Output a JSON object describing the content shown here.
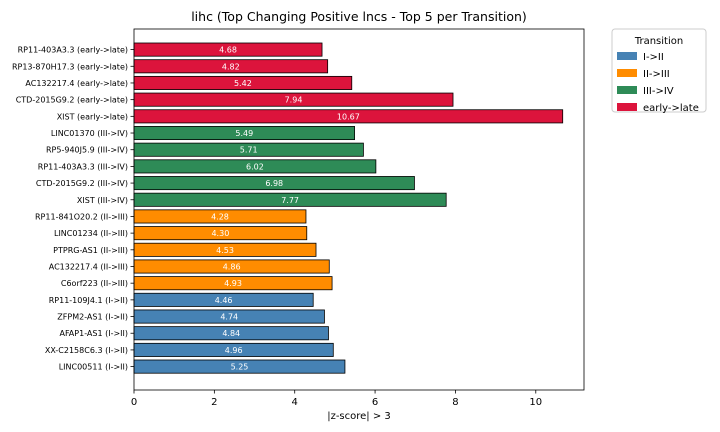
{
  "chart_data": {
    "type": "bar",
    "orientation": "horizontal",
    "title": "lihc (Top Changing Positive lncs - Top 5 per Transition)",
    "xlabel": "|z-score| > 3",
    "ylabel": "",
    "xlim": [
      0,
      11.2
    ],
    "xticks": [
      0,
      2,
      4,
      6,
      8,
      10
    ],
    "grid": false,
    "legend": {
      "title": "Transition",
      "placement": "outside-top-right",
      "entries": [
        {
          "label": "I->II",
          "color": "#4682b4"
        },
        {
          "label": "II->III",
          "color": "#ff8c00"
        },
        {
          "label": "III->IV",
          "color": "#2e8b57"
        },
        {
          "label": "early->late",
          "color": "#dc143c"
        }
      ]
    },
    "bars": [
      {
        "label": "RP11-403A3.3 (early->late)",
        "value": 4.68,
        "value_label": "4.68",
        "series": "early->late"
      },
      {
        "label": "RP13-870H17.3 (early->late)",
        "value": 4.82,
        "value_label": "4.82",
        "series": "early->late"
      },
      {
        "label": "AC132217.4 (early->late)",
        "value": 5.42,
        "value_label": "5.42",
        "series": "early->late"
      },
      {
        "label": "CTD-2015G9.2 (early->late)",
        "value": 7.94,
        "value_label": "7.94",
        "series": "early->late"
      },
      {
        "label": "XIST (early->late)",
        "value": 10.67,
        "value_label": "10.67",
        "series": "early->late"
      },
      {
        "label": "LINC01370 (III->IV)",
        "value": 5.49,
        "value_label": "5.49",
        "series": "III->IV"
      },
      {
        "label": "RP5-940J5.9 (III->IV)",
        "value": 5.71,
        "value_label": "5.71",
        "series": "III->IV"
      },
      {
        "label": "RP11-403A3.3 (III->IV)",
        "value": 6.02,
        "value_label": "6.02",
        "series": "III->IV"
      },
      {
        "label": "CTD-2015G9.2 (III->IV)",
        "value": 6.98,
        "value_label": "6.98",
        "series": "III->IV"
      },
      {
        "label": "XIST (III->IV)",
        "value": 7.77,
        "value_label": "7.77",
        "series": "III->IV"
      },
      {
        "label": "RP11-841O20.2 (II->III)",
        "value": 4.28,
        "value_label": "4.28",
        "series": "II->III"
      },
      {
        "label": "LINC01234 (II->III)",
        "value": 4.3,
        "value_label": "4.30",
        "series": "II->III"
      },
      {
        "label": "PTPRG-AS1 (II->III)",
        "value": 4.53,
        "value_label": "4.53",
        "series": "II->III"
      },
      {
        "label": "AC132217.4 (II->III)",
        "value": 4.86,
        "value_label": "4.86",
        "series": "II->III"
      },
      {
        "label": "C6orf223 (II->III)",
        "value": 4.93,
        "value_label": "4.93",
        "series": "II->III"
      },
      {
        "label": "RP11-109J4.1 (I->II)",
        "value": 4.46,
        "value_label": "4.46",
        "series": "I->II"
      },
      {
        "label": "ZFPM2-AS1 (I->II)",
        "value": 4.74,
        "value_label": "4.74",
        "series": "I->II"
      },
      {
        "label": "AFAP1-AS1 (I->II)",
        "value": 4.84,
        "value_label": "4.84",
        "series": "I->II"
      },
      {
        "label": "XX-C2158C6.3 (I->II)",
        "value": 4.96,
        "value_label": "4.96",
        "series": "I->II"
      },
      {
        "label": "LINC00511 (I->II)",
        "value": 5.25,
        "value_label": "5.25",
        "series": "I->II"
      }
    ]
  }
}
